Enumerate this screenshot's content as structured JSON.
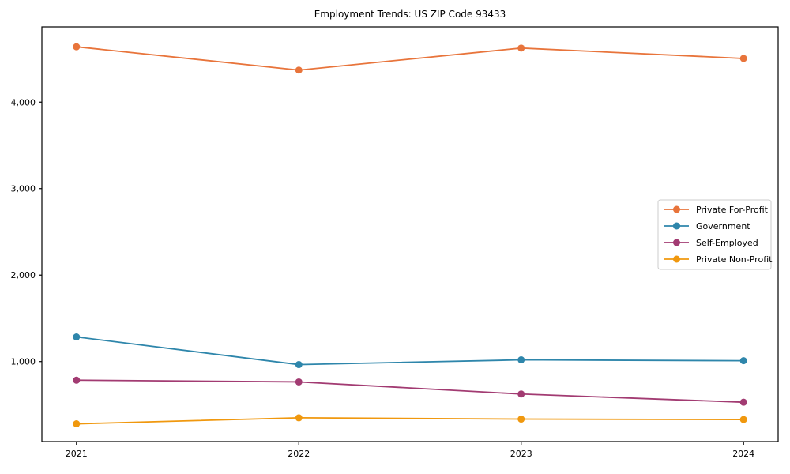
{
  "title": "Employment Trends: US ZIP Code 93433",
  "chart_data": {
    "type": "line",
    "title": "Employment Trends: US ZIP Code 93433",
    "xlabel": "",
    "ylabel": "",
    "x": [
      "2021",
      "2022",
      "2023",
      "2024"
    ],
    "series": [
      {
        "name": "Private For-Profit",
        "color": "#E8743B",
        "values": [
          4640,
          4370,
          4625,
          4505
        ]
      },
      {
        "name": "Government",
        "color": "#2E86AB",
        "values": [
          1285,
          965,
          1020,
          1010
        ]
      },
      {
        "name": "Self-Employed",
        "color": "#A23B72",
        "values": [
          785,
          765,
          625,
          530
        ]
      },
      {
        "name": "Private Non-Profit",
        "color": "#F0980E",
        "values": [
          280,
          350,
          335,
          330
        ]
      }
    ],
    "ylim": [
      75,
      4870
    ],
    "yticks": [
      1000,
      2000,
      3000,
      4000
    ],
    "ytick_labels": [
      "1,000",
      "2,000",
      "3,000",
      "4,000"
    ],
    "grid": false,
    "legend_position": "right",
    "marker": "circle",
    "axis_color": "#000000",
    "legend_border_color": "#cccccc",
    "legend_background": "#ffffff"
  }
}
